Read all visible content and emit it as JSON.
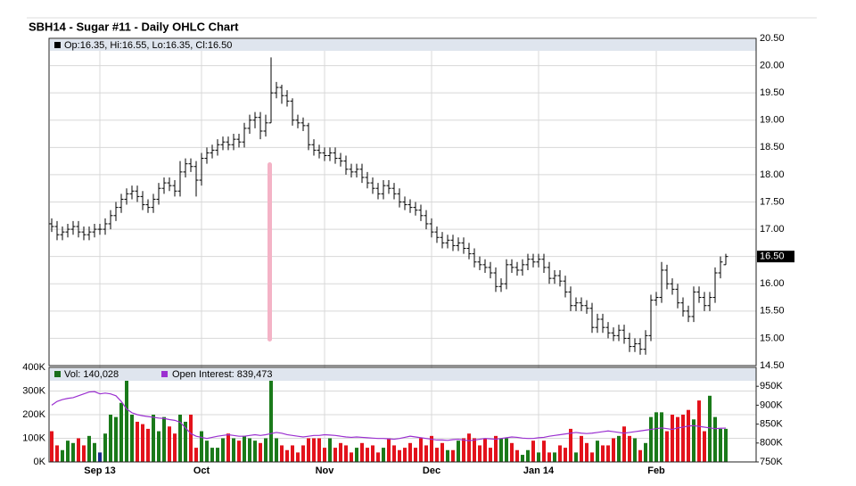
{
  "chart_data": [
    {
      "type": "ohlc",
      "title": "SBH14 - Sugar #11 - Daily OHLC Chart",
      "header": "Op:16.35, Hi:16.55, Lo:16.35, Cl:16.50",
      "color": "#000000",
      "header_color": "#000000",
      "open": [
        17.1,
        17.05,
        16.9,
        16.95,
        17.0,
        17.05,
        16.95,
        16.9,
        16.95,
        17.0,
        17.0,
        17.1,
        17.25,
        17.4,
        17.55,
        17.65,
        17.7,
        17.6,
        17.45,
        17.4,
        17.55,
        17.75,
        17.85,
        17.8,
        17.7,
        18.05,
        18.2,
        18.15,
        17.9,
        18.3,
        18.4,
        18.45,
        18.55,
        18.6,
        18.55,
        18.65,
        18.6,
        18.85,
        19.0,
        19.05,
        18.8,
        18.95,
        19.5,
        19.6,
        19.45,
        19.35,
        19.0,
        18.95,
        18.9,
        18.55,
        18.45,
        18.4,
        18.35,
        18.4,
        18.3,
        18.25,
        18.1,
        18.05,
        18.1,
        17.95,
        17.85,
        17.75,
        17.65,
        17.8,
        17.75,
        17.65,
        17.5,
        17.45,
        17.4,
        17.35,
        17.25,
        17.1,
        16.95,
        16.85,
        16.75,
        16.8,
        16.7,
        16.75,
        16.65,
        16.55,
        16.4,
        16.35,
        16.3,
        16.2,
        15.95,
        16.0,
        16.35,
        16.3,
        16.25,
        16.35,
        16.45,
        16.4,
        16.45,
        16.3,
        16.1,
        16.15,
        16.05,
        15.85,
        15.6,
        15.65,
        15.6,
        15.55,
        15.2,
        15.35,
        15.2,
        15.1,
        15.05,
        15.15,
        15.0,
        14.85,
        14.9,
        14.8,
        15.05,
        15.7,
        15.75,
        16.25,
        16.0,
        15.9,
        15.65,
        15.5,
        15.4,
        15.85,
        15.75,
        15.6,
        15.75,
        16.2,
        16.35
      ],
      "high": [
        17.2,
        17.15,
        17.05,
        17.1,
        17.15,
        17.15,
        17.05,
        17.05,
        17.1,
        17.1,
        17.2,
        17.35,
        17.5,
        17.65,
        17.75,
        17.8,
        17.8,
        17.7,
        17.55,
        17.65,
        17.85,
        17.95,
        17.95,
        17.9,
        18.25,
        18.3,
        18.3,
        18.25,
        18.4,
        18.5,
        18.55,
        18.65,
        18.7,
        18.7,
        18.75,
        18.75,
        18.95,
        19.1,
        19.15,
        19.15,
        19.1,
        20.15,
        19.7,
        19.65,
        19.55,
        19.4,
        19.1,
        19.05,
        18.95,
        18.65,
        18.55,
        18.5,
        18.5,
        18.5,
        18.4,
        18.35,
        18.2,
        18.2,
        18.2,
        18.05,
        17.95,
        17.85,
        17.9,
        17.9,
        17.85,
        17.75,
        17.6,
        17.55,
        17.5,
        17.45,
        17.35,
        17.2,
        17.05,
        16.95,
        16.9,
        16.9,
        16.85,
        16.85,
        16.75,
        16.65,
        16.5,
        16.45,
        16.4,
        16.3,
        16.1,
        16.45,
        16.45,
        16.4,
        16.45,
        16.55,
        16.55,
        16.55,
        16.55,
        16.4,
        16.25,
        16.25,
        16.15,
        15.95,
        15.75,
        15.75,
        15.7,
        15.65,
        15.45,
        15.45,
        15.3,
        15.2,
        15.25,
        15.25,
        15.1,
        15.0,
        15.0,
        15.15,
        15.8,
        15.85,
        16.4,
        16.35,
        16.1,
        16.0,
        15.75,
        15.6,
        15.95,
        15.95,
        15.85,
        15.85,
        16.3,
        16.5,
        16.55
      ],
      "low": [
        16.95,
        16.8,
        16.8,
        16.85,
        16.9,
        16.85,
        16.8,
        16.8,
        16.85,
        16.9,
        16.9,
        17.0,
        17.15,
        17.3,
        17.45,
        17.55,
        17.5,
        17.35,
        17.3,
        17.3,
        17.45,
        17.65,
        17.7,
        17.6,
        17.6,
        17.95,
        18.05,
        17.6,
        17.8,
        18.2,
        18.3,
        18.35,
        18.45,
        18.45,
        18.45,
        18.5,
        18.5,
        18.75,
        18.85,
        18.65,
        18.7,
        18.95,
        19.4,
        19.3,
        19.25,
        18.9,
        18.85,
        18.8,
        18.45,
        18.35,
        18.3,
        18.25,
        18.25,
        18.2,
        18.15,
        18.0,
        17.95,
        17.95,
        17.85,
        17.75,
        17.65,
        17.55,
        17.55,
        17.65,
        17.55,
        17.4,
        17.35,
        17.3,
        17.25,
        17.15,
        17.0,
        16.85,
        16.75,
        16.65,
        16.65,
        16.6,
        16.6,
        16.55,
        16.45,
        16.3,
        16.25,
        16.2,
        16.1,
        15.85,
        15.85,
        15.9,
        16.2,
        16.15,
        16.15,
        16.25,
        16.3,
        16.3,
        16.2,
        16.0,
        16.0,
        15.95,
        15.75,
        15.5,
        15.5,
        15.5,
        15.45,
        15.1,
        15.1,
        15.1,
        15.0,
        14.95,
        14.95,
        14.9,
        14.75,
        14.75,
        14.7,
        14.7,
        14.95,
        15.6,
        15.65,
        15.9,
        15.8,
        15.55,
        15.4,
        15.3,
        15.3,
        15.65,
        15.5,
        15.5,
        15.65,
        16.1,
        16.35
      ],
      "close": [
        17.05,
        16.9,
        16.95,
        17.0,
        17.05,
        16.95,
        16.9,
        16.95,
        17.0,
        17.0,
        17.1,
        17.25,
        17.4,
        17.55,
        17.65,
        17.7,
        17.6,
        17.45,
        17.4,
        17.55,
        17.75,
        17.85,
        17.8,
        17.7,
        18.05,
        18.2,
        18.15,
        17.9,
        18.3,
        18.4,
        18.45,
        18.55,
        18.6,
        18.55,
        18.65,
        18.6,
        18.85,
        19.0,
        19.05,
        18.8,
        18.95,
        19.5,
        19.6,
        19.45,
        19.35,
        19.0,
        18.95,
        18.9,
        18.55,
        18.45,
        18.4,
        18.35,
        18.4,
        18.3,
        18.25,
        18.1,
        18.05,
        18.1,
        17.95,
        17.85,
        17.75,
        17.65,
        17.8,
        17.75,
        17.65,
        17.5,
        17.45,
        17.4,
        17.35,
        17.25,
        17.1,
        16.95,
        16.85,
        16.75,
        16.8,
        16.7,
        16.75,
        16.65,
        16.55,
        16.4,
        16.35,
        16.3,
        16.2,
        15.95,
        16.0,
        16.35,
        16.3,
        16.25,
        16.35,
        16.45,
        16.4,
        16.45,
        16.3,
        16.1,
        16.15,
        16.05,
        15.85,
        15.6,
        15.65,
        15.6,
        15.55,
        15.2,
        15.35,
        15.2,
        15.1,
        15.05,
        15.15,
        15.0,
        14.85,
        14.9,
        14.8,
        15.05,
        15.7,
        15.75,
        16.25,
        16.0,
        15.9,
        15.65,
        15.5,
        15.4,
        15.85,
        15.75,
        15.6,
        15.75,
        16.2,
        16.4,
        16.5
      ],
      "ylim": [
        14.5,
        20.5
      ],
      "yticks": [
        {
          "value": 14.5,
          "label": "14.50"
        },
        {
          "value": 15,
          "label": "15.00"
        },
        {
          "value": 15.5,
          "label": "15.50"
        },
        {
          "value": 16,
          "label": "16.00"
        },
        {
          "value": 16.5,
          "label": "16.50"
        },
        {
          "value": 17,
          "label": "17.00"
        },
        {
          "value": 17.5,
          "label": "17.50"
        },
        {
          "value": 18,
          "label": "18.00"
        },
        {
          "value": 18.5,
          "label": "18.50"
        },
        {
          "value": 19,
          "label": "19.00"
        },
        {
          "value": 19.5,
          "label": "19.50"
        },
        {
          "value": 20,
          "label": "20.00"
        },
        {
          "value": 20.5,
          "label": "20.50"
        }
      ],
      "last_price": {
        "value": 16.5,
        "label": "16.50"
      },
      "grid": true
    },
    {
      "type": "bar",
      "categories": [
        null,
        null,
        null,
        null,
        null,
        null,
        null,
        null,
        null,
        "Sep 13",
        null,
        null,
        null,
        null,
        null,
        null,
        null,
        null,
        null,
        null,
        null,
        null,
        null,
        null,
        null,
        null,
        null,
        null,
        "Oct",
        null,
        null,
        null,
        null,
        null,
        null,
        null,
        null,
        null,
        null,
        null,
        null,
        null,
        null,
        null,
        null,
        null,
        null,
        null,
        null,
        null,
        null,
        "Nov",
        null,
        null,
        null,
        null,
        null,
        null,
        null,
        null,
        null,
        null,
        null,
        null,
        null,
        null,
        null,
        null,
        null,
        null,
        null,
        "Dec",
        null,
        null,
        null,
        null,
        null,
        null,
        null,
        null,
        null,
        null,
        null,
        null,
        null,
        null,
        null,
        null,
        null,
        null,
        null,
        "Jan 14",
        null,
        null,
        null,
        null,
        null,
        null,
        null,
        null,
        null,
        null,
        null,
        null,
        null,
        null,
        null,
        null,
        null,
        null,
        null,
        null,
        null,
        "Feb",
        null,
        null,
        null,
        null,
        null,
        null,
        null,
        null,
        null,
        null,
        null,
        null,
        null
      ],
      "series": [
        {
          "name": "Vol: 140,028",
          "color": "#1a6e1a",
          "up_color": "#1a7a1a",
          "down_color": "#e3121b",
          "unchanged_color": "#1b2a8c",
          "values": [
            130000,
            70000,
            50000,
            90000,
            80000,
            100000,
            70000,
            110000,
            80000,
            40000,
            120000,
            200000,
            190000,
            250000,
            350000,
            200000,
            170000,
            160000,
            140000,
            200000,
            130000,
            190000,
            150000,
            120000,
            200000,
            170000,
            200000,
            60000,
            130000,
            90000,
            60000,
            60000,
            100000,
            120000,
            100000,
            90000,
            110000,
            100000,
            90000,
            80000,
            100000,
            390000,
            100000,
            70000,
            50000,
            70000,
            40000,
            70000,
            100000,
            100000,
            100000,
            60000,
            100000,
            60000,
            80000,
            70000,
            40000,
            60000,
            80000,
            60000,
            70000,
            40000,
            60000,
            100000,
            70000,
            50000,
            60000,
            80000,
            60000,
            100000,
            70000,
            110000,
            60000,
            80000,
            50000,
            50000,
            90000,
            100000,
            120000,
            100000,
            70000,
            100000,
            60000,
            110000,
            100000,
            100000,
            80000,
            50000,
            30000,
            50000,
            90000,
            40000,
            90000,
            40000,
            40000,
            70000,
            60000,
            140000,
            40000,
            110000,
            80000,
            40000,
            90000,
            70000,
            70000,
            100000,
            110000,
            150000,
            110000,
            100000,
            50000,
            80000,
            190000,
            210000,
            210000,
            130000,
            200000,
            190000,
            200000,
            220000,
            180000,
            260000,
            130000,
            280000,
            190000,
            140000,
            140028
          ]
        },
        {
          "name": "Open Interest: 839,473",
          "color": "#9b30d0",
          "axis": "y2",
          "values": [
            900000,
            910000,
            915000,
            918000,
            920000,
            925000,
            930000,
            935000,
            936000,
            930000,
            932000,
            930000,
            925000,
            910000,
            890000,
            880000,
            875000,
            872000,
            870000,
            868000,
            866000,
            865000,
            862000,
            860000,
            855000,
            840000,
            825000,
            818000,
            815000,
            812000,
            815000,
            818000,
            820000,
            822000,
            820000,
            818000,
            818000,
            820000,
            822000,
            820000,
            822000,
            825000,
            828000,
            826000,
            822000,
            820000,
            818000,
            816000,
            818000,
            820000,
            820000,
            822000,
            821000,
            820000,
            818000,
            816000,
            815000,
            816000,
            815000,
            814000,
            813000,
            812000,
            812000,
            811000,
            810000,
            812000,
            815000,
            818000,
            816000,
            814000,
            812000,
            810000,
            808000,
            808000,
            807000,
            809000,
            810000,
            808000,
            806000,
            808000,
            810000,
            812000,
            811000,
            810000,
            812000,
            814000,
            816000,
            815000,
            813000,
            812000,
            812000,
            814000,
            815000,
            818000,
            820000,
            822000,
            824000,
            826000,
            828000,
            826000,
            825000,
            826000,
            828000,
            830000,
            832000,
            830000,
            828000,
            826000,
            828000,
            830000,
            832000,
            834000,
            836000,
            838000,
            840000,
            838000,
            836000,
            840000,
            842000,
            845000,
            846000,
            844000,
            842000,
            840000,
            838000,
            839000,
            839473
          ]
        }
      ],
      "ylim": [
        0,
        400000
      ],
      "yticks": [
        {
          "value": 0,
          "label": "0K"
        },
        {
          "value": 100000,
          "label": "100K"
        },
        {
          "value": 200000,
          "label": "200K"
        },
        {
          "value": 300000,
          "label": "300K"
        },
        {
          "value": 400000,
          "label": "400K"
        }
      ],
      "y2lim": [
        750000,
        1000000
      ],
      "y2ticks": [
        {
          "value": 750000,
          "label": "750K"
        },
        {
          "value": 800000,
          "label": "800K"
        },
        {
          "value": 850000,
          "label": "850K"
        },
        {
          "value": 900000,
          "label": "900K"
        },
        {
          "value": 950000,
          "label": "950K"
        }
      ],
      "grid": true
    }
  ]
}
